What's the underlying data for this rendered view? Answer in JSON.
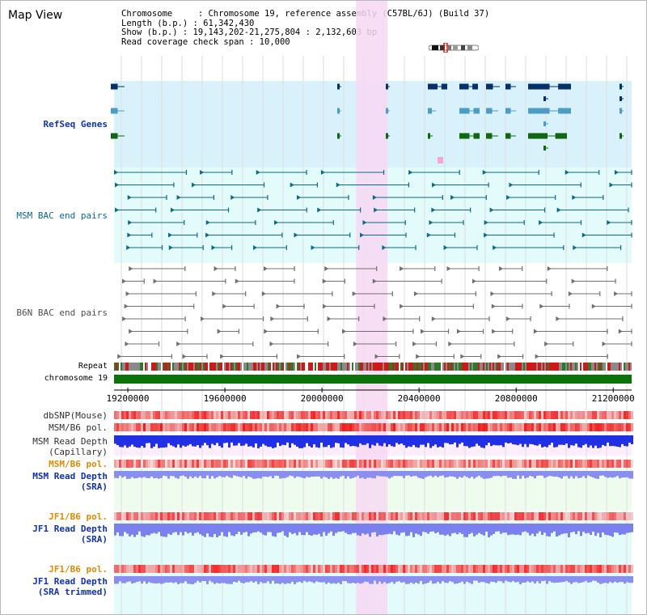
{
  "window": {
    "title": "Map View"
  },
  "info": {
    "chromosome": "Chromosome     : Chromosome 19, reference assembly (C57BL/6J) (Build 37)",
    "length": "Length (b.p.) : 61,342,430",
    "show": "Show (b.p.) : 19,143,202-21,275,804 : 2,132,603 bp",
    "coverage": "Read coverage check span : 10,000"
  },
  "tracks": {
    "refseq": "RefSeq Genes",
    "msm_bac": "MSM BAC end pairs",
    "b6n_bac": "B6N BAC end pairs",
    "repeat": "Repeat",
    "chromosome": "chromosome 19",
    "dbsnp": "dbSNP(Mouse)",
    "msm_b6_pol": "MSM/B6 pol.",
    "msm_depth_cap": "MSM Read Depth\n(Capillary)",
    "msm_b6_pol2": "MSM/B6 pol.",
    "msm_depth_sra": "MSM Read Depth\n(SRA)",
    "jf1_b6_pol": "JF1/B6 pol.",
    "jf1_depth_sra": "JF1 Read Depth\n(SRA)",
    "jf1_b6_pol2": "JF1/B6 pol.",
    "jf1_depth_trim": "JF1 Read Depth\n(SRA trimmed)"
  },
  "axis": {
    "ticks": [
      "19200000",
      "19600000",
      "20000000",
      "20400000",
      "20800000",
      "21200000"
    ],
    "tick_values": [
      19200000,
      19600000,
      20000000,
      20400000,
      20800000,
      21200000
    ],
    "range": [
      19143202,
      21275804
    ],
    "highlight_range": [
      20140000,
      20270000
    ]
  },
  "colors": {
    "refseq_bg": "#d9f1fb",
    "refseq_dark": "#06306a",
    "refseq_light": "#4c9cc4",
    "refseq_green": "#116611",
    "msm_bg": "#e4fbfb",
    "msm_line": "#0a6a8a",
    "b6n_line": "#707070",
    "highlight": "#f7d8f3",
    "chrom_bar": "#0c730c",
    "label_blue": "#1034a6",
    "label_orange": "#e08a00",
    "label_dark": "#303030"
  }
}
